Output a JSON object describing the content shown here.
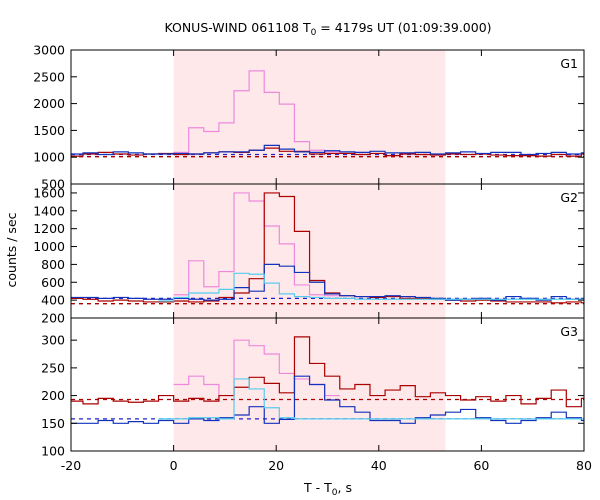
{
  "chart_data": {
    "type": "line",
    "title": "KONUS-WIND 061108 T",
    "title_sub": "0",
    "title_rest": " = 4179s UT (01:09:39.000)",
    "xlabel": "T - T",
    "xlabel_sub": "0",
    "xlabel_rest": ", s",
    "ylabel": "counts / sec",
    "xlim": [
      -20,
      80
    ],
    "x_ticks": [
      -20,
      0,
      20,
      40,
      60,
      80
    ],
    "highlight_interval": [
      0,
      53
    ],
    "highlight_color": "#ffe8ea",
    "step_width": 2.944,
    "colors": {
      "total": "#ee88dd",
      "red": "#aa0000",
      "blue": "#1133bb",
      "cyan": "#55ccee",
      "bg_red": "#aa0000",
      "bg_blue": "#2222cc"
    },
    "panels": [
      {
        "label": "G1",
        "ylim": [
          500,
          3000
        ],
        "y_ticks": [
          500,
          1000,
          1500,
          2000,
          2500,
          3000
        ],
        "background": {
          "red": 1010,
          "blue": 1050
        },
        "series": [
          {
            "name": "total",
            "x_start": 0.0,
            "values": [
              1090,
              1550,
              1480,
              1640,
              2240,
              2610,
              2210,
              1990,
              1290,
              1130,
              1100
            ]
          },
          {
            "name": "red",
            "x_start": -20.6,
            "values": [
              1020,
              1060,
              1090,
              1060,
              1040,
              1060,
              1070,
              1050,
              1060,
              1080,
              1100,
              1090,
              1130,
              1170,
              1110,
              1110,
              1060,
              1070,
              1070,
              1050,
              1070,
              1030,
              1060,
              1050,
              1040,
              1060,
              1050,
              1060,
              1040,
              1030,
              1030,
              1020,
              1050,
              1020,
              1060
            ]
          },
          {
            "name": "blue",
            "x_start": -20.6,
            "values": [
              1060,
              1080,
              1050,
              1100,
              1080,
              1060,
              1060,
              1070,
              1060,
              1080,
              1100,
              1100,
              1130,
              1220,
              1150,
              1100,
              1090,
              1120,
              1100,
              1090,
              1110,
              1080,
              1080,
              1090,
              1060,
              1080,
              1100,
              1070,
              1090,
              1090,
              1050,
              1070,
              1090,
              1060,
              1080
            ]
          }
        ]
      },
      {
        "label": "G2",
        "ylim": [
          200,
          1700
        ],
        "y_ticks": [
          200,
          400,
          600,
          800,
          1000,
          1200,
          1400,
          1600
        ],
        "background": {
          "red": 360,
          "blue": 420
        },
        "series": [
          {
            "name": "total",
            "x_start": 0.0,
            "values": [
              460,
              840,
              550,
              720,
              1600,
              1510,
              1230,
              1030,
              570,
              460,
              450
            ]
          },
          {
            "name": "red",
            "x_start": -20.6,
            "values": [
              420,
              410,
              390,
              400,
              390,
              380,
              380,
              390,
              380,
              390,
              430,
              480,
              640,
              1600,
              1560,
              1170,
              620,
              480,
              450,
              440,
              430,
              440,
              420,
              420,
              410,
              400,
              390,
              400,
              390,
              380,
              380,
              380,
              370,
              380,
              370
            ]
          },
          {
            "name": "blue",
            "x_start": -20.6,
            "values": [
              430,
              430,
              420,
              430,
              420,
              410,
              410,
              420,
              410,
              400,
              410,
              540,
              500,
              800,
              780,
              710,
              600,
              470,
              450,
              440,
              440,
              450,
              440,
              430,
              420,
              400,
              410,
              420,
              400,
              440,
              420,
              400,
              440,
              410,
              420
            ]
          },
          {
            "name": "cyan",
            "x_start": -2.94,
            "values": [
              390,
              430,
              480,
              480,
              520,
              700,
              690,
              590,
              470,
              440,
              430,
              420,
              420,
              410,
              410,
              410,
              410,
              410,
              410,
              410,
              410,
              410,
              410,
              410,
              410,
              410,
              410,
              410,
              410
            ]
          }
        ]
      },
      {
        "label": "G3",
        "ylim": [
          100,
          340
        ],
        "y_ticks": [
          100,
          150,
          200,
          250,
          300
        ],
        "background": {
          "red": 193,
          "blue": 158
        },
        "series": [
          {
            "name": "total",
            "x_start": 0.0,
            "values": [
              220,
              235,
              220,
              200,
              300,
              290,
              275,
              240,
              230,
              220,
              200
            ]
          },
          {
            "name": "red",
            "x_start": -20.6,
            "values": [
              190,
              185,
              195,
              190,
              188,
              190,
              200,
              190,
              195,
              190,
              200,
              215,
              233,
              222,
              205,
              306,
              258,
              235,
              212,
              220,
              200,
              210,
              218,
              198,
              205,
              200,
              192,
              198,
              190,
              200,
              185,
              195,
              210,
              180,
              195
            ]
          },
          {
            "name": "blue",
            "x_start": -20.6,
            "values": [
              150,
              150,
              155,
              150,
              153,
              150,
              155,
              150,
              158,
              155,
              160,
              165,
              180,
              150,
              157,
              235,
              220,
              192,
              180,
              170,
              155,
              155,
              150,
              160,
              165,
              170,
              175,
              160,
              155,
              150,
              155,
              160,
              170,
              160,
              155
            ]
          },
          {
            "name": "cyan",
            "x_start": -2.94,
            "values": [
              158,
              158,
              160,
              160,
              158,
              230,
              212,
              178,
              160,
              158,
              158,
              158,
              158,
              158,
              158,
              158,
              158,
              158,
              158,
              158,
              158,
              158,
              158,
              158,
              158,
              158,
              158,
              158,
              158
            ]
          }
        ]
      }
    ]
  }
}
